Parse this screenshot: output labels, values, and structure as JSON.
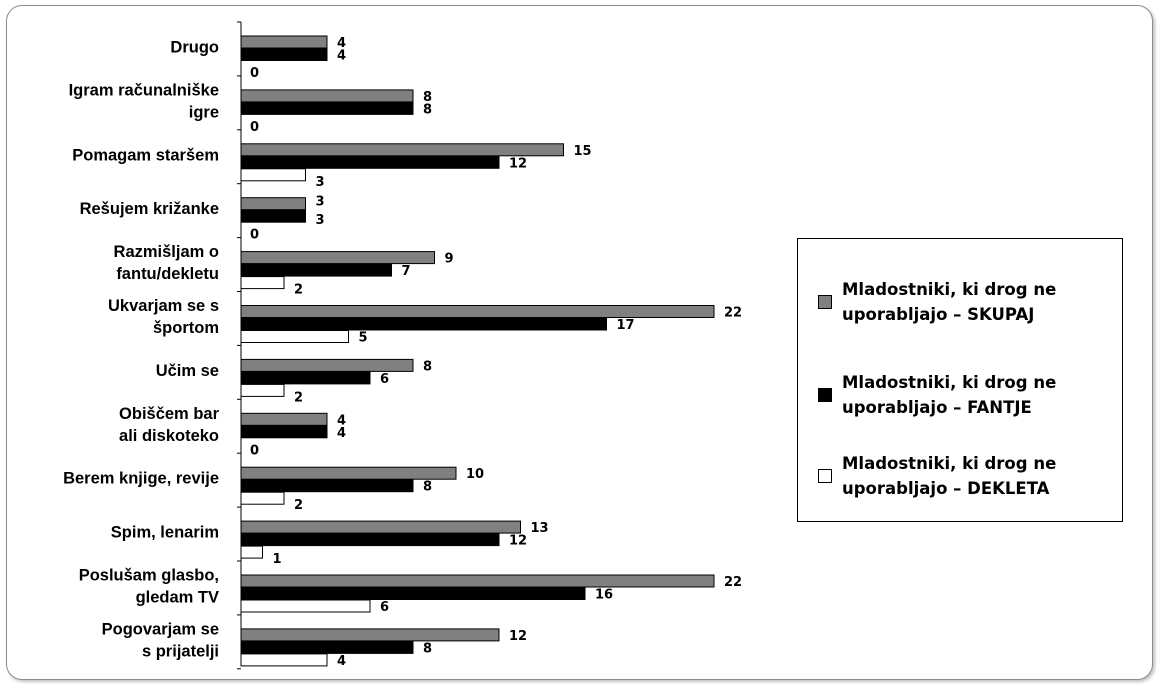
{
  "chart_data": {
    "type": "bar",
    "orientation": "horizontal",
    "categories": [
      "Drugo",
      "Igram računalniške igre",
      "Pomagam staršem",
      "Rešujem križanke",
      "Razmišljam o fantu/dekletu",
      "Ukvarjam se s športom",
      "Učim se",
      "Obiščem bar ali diskoteko",
      "Berem knjige, revije",
      "Spim, lenarim",
      "Poslušam glasbo, gledam TV",
      "Pogovarjam se s prijatelji"
    ],
    "category_lines": [
      [
        "Drugo"
      ],
      [
        "Igram računalniške",
        "igre"
      ],
      [
        "Pomagam staršem"
      ],
      [
        "Rešujem križanke"
      ],
      [
        "Razmišljam o",
        "fantu/dekletu"
      ],
      [
        "Ukvarjam se s",
        "športom"
      ],
      [
        "Učim se"
      ],
      [
        "Obiščem bar",
        "ali diskoteko"
      ],
      [
        "Berem knjige, revije"
      ],
      [
        "Spim, lenarim"
      ],
      [
        "Poslušam glasbo,",
        "gledam TV"
      ],
      [
        "Pogovarjam se",
        "s prijatelji"
      ]
    ],
    "series": [
      {
        "name": "Mladostniki, ki drog ne uporabljajo – SKUPAJ",
        "color": "#808080",
        "values": [
          4,
          8,
          15,
          3,
          9,
          22,
          8,
          4,
          10,
          13,
          22,
          12
        ]
      },
      {
        "name": "Mladostniki, ki drog ne uporabljajo – FANTJE",
        "color": "#000000",
        "values": [
          4,
          8,
          12,
          3,
          7,
          17,
          6,
          4,
          8,
          12,
          16,
          8
        ]
      },
      {
        "name": "Mladostniki, ki drog ne uporabljajo – DEKLETA",
        "color": "#ffffff",
        "values": [
          0,
          0,
          3,
          0,
          2,
          5,
          2,
          0,
          2,
          1,
          6,
          4
        ]
      }
    ],
    "xlim": [
      0,
      25
    ],
    "grid": false,
    "legend_position": "right",
    "data_labels": true
  }
}
